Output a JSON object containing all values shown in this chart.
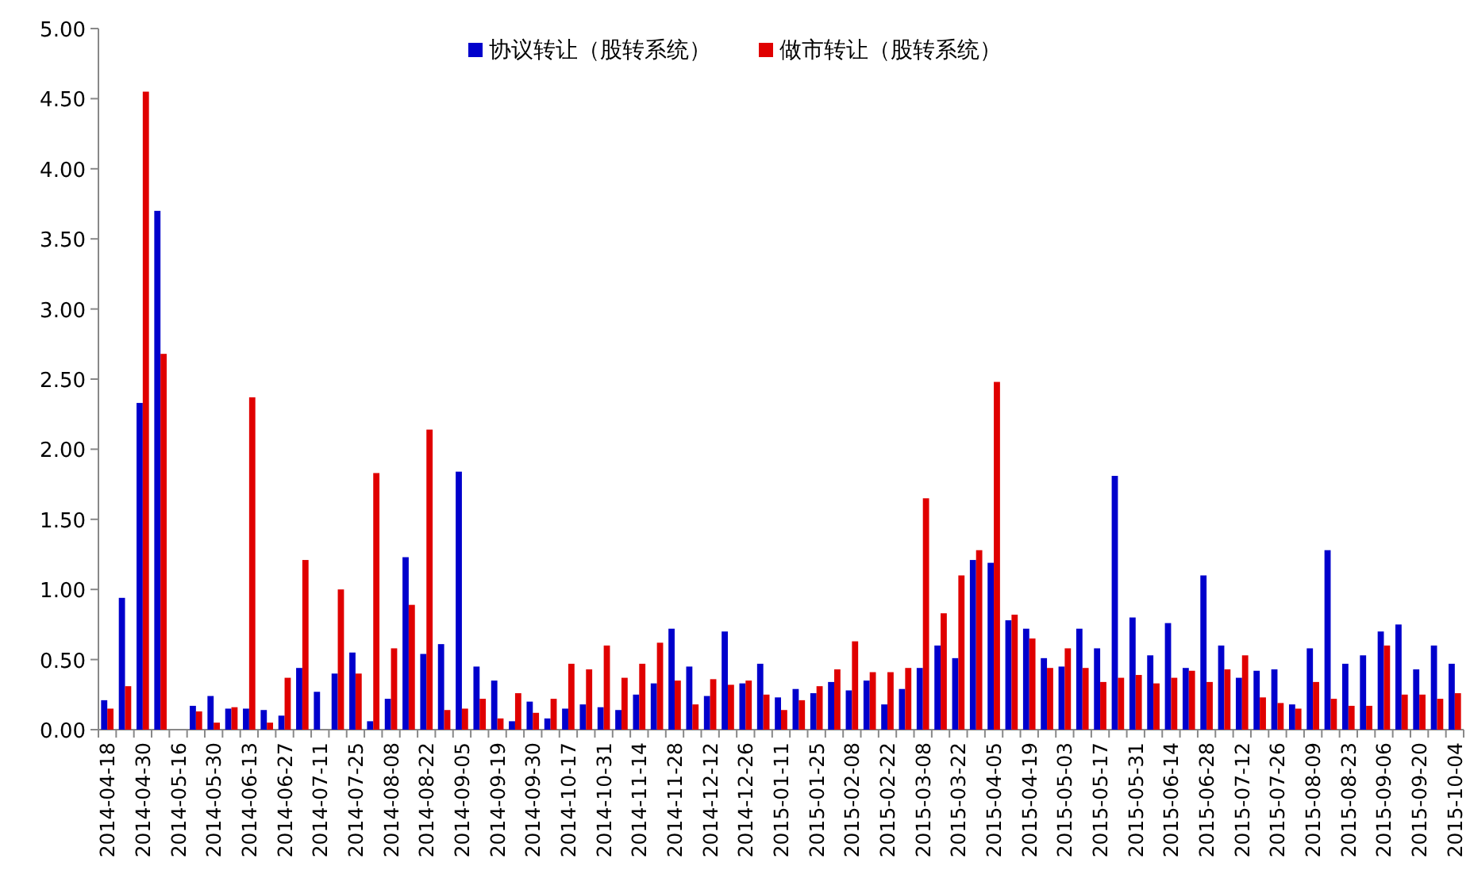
{
  "chart_data": {
    "type": "bar",
    "legend": "top",
    "categories": [
      "2014-04-18",
      null,
      "2014-04-30",
      null,
      "2014-05-16",
      null,
      "2014-05-30",
      null,
      "2014-06-13",
      null,
      "2014-06-27",
      null,
      "2014-07-11",
      null,
      "2014-07-25",
      null,
      "2014-08-08",
      null,
      "2014-08-22",
      null,
      "2014-09-05",
      null,
      "2014-09-19",
      null,
      "2014-09-30",
      null,
      "2014-10-17",
      null,
      "2014-10-31",
      null,
      "2014-11-14",
      null,
      "2014-11-28",
      null,
      "2014-12-12",
      null,
      "2014-12-26",
      null,
      "2015-01-11",
      null,
      "2015-01-25",
      null,
      "2015-02-08",
      null,
      "2015-02-22",
      null,
      "2015-03-08",
      null,
      "2015-03-22",
      null,
      "2015-04-05",
      null,
      "2015-04-19",
      null,
      "2015-05-03",
      null,
      "2015-05-17",
      null,
      "2015-05-31",
      null,
      "2015-06-14",
      null,
      "2015-06-28",
      null,
      "2015-07-12",
      null,
      "2015-07-26",
      null,
      "2015-08-09",
      null,
      "2015-08-23",
      null,
      "2015-09-06",
      null,
      "2015-09-20",
      null,
      "2015-10-04"
    ],
    "series": [
      {
        "name": "协议转让（股转系统）",
        "color": "#0000cc",
        "values": [
          0.21,
          0.94,
          2.33,
          3.7,
          0,
          0.17,
          0.24,
          0.15,
          0.15,
          0.14,
          0.1,
          0.44,
          0.27,
          0.4,
          0.55,
          0.06,
          0.22,
          1.23,
          0.54,
          0.61,
          1.84,
          0.45,
          0.35,
          0.06,
          0.2,
          0.08,
          0.15,
          0.18,
          0.16,
          0.14,
          0.25,
          0.33,
          0.72,
          0.45,
          0.24,
          0.7,
          0.33,
          0.47,
          0.23,
          0.29,
          0.26,
          0.34,
          0.28,
          0.35,
          0.18,
          0.29,
          0.44,
          0.6,
          0.51,
          1.21,
          1.19,
          0.78,
          0.72,
          0.51,
          0.45,
          0.72,
          0.58,
          1.81,
          0.8,
          0.53,
          0.76,
          0.44,
          1.1,
          0.6,
          0.37,
          0.42,
          0.43,
          0.18,
          0.58,
          1.28,
          0.47,
          0.53,
          0.7,
          0.75,
          0.43,
          0.6,
          0.47
        ]
      },
      {
        "name": "做市转让（股转系统）",
        "color": "#e00000",
        "values": [
          0.15,
          0.31,
          4.55,
          2.68,
          0,
          0.13,
          0.05,
          0.16,
          2.37,
          0.05,
          0.37,
          1.21,
          0,
          1.0,
          0.4,
          1.83,
          0.58,
          0.89,
          2.14,
          0.14,
          0.15,
          0.22,
          0.08,
          0.26,
          0.12,
          0.22,
          0.47,
          0.43,
          0.6,
          0.37,
          0.47,
          0.62,
          0.35,
          0.18,
          0.36,
          0.32,
          0.35,
          0.25,
          0.14,
          0.21,
          0.31,
          0.43,
          0.63,
          0.41,
          0.41,
          0.44,
          1.65,
          0.83,
          1.1,
          1.28,
          2.48,
          0.82,
          0.65,
          0.44,
          0.58,
          0.44,
          0.34,
          0.37,
          0.39,
          0.33,
          0.37,
          0.42,
          0.34,
          0.43,
          0.53,
          0.23,
          0.19,
          0.15,
          0.34,
          0.22,
          0.17,
          0.17,
          0.6,
          0.25,
          0.25,
          0.22,
          0.26
        ]
      }
    ],
    "ylim": [
      0,
      5
    ],
    "yticks": [
      {
        "value": 0,
        "label": "0.00"
      },
      {
        "value": 0.5,
        "label": "0.50"
      },
      {
        "value": 1,
        "label": "1.00"
      },
      {
        "value": 1.5,
        "label": "1.50"
      },
      {
        "value": 2,
        "label": "2.00"
      },
      {
        "value": 2.5,
        "label": "2.50"
      },
      {
        "value": 3,
        "label": "3.00"
      },
      {
        "value": 3.5,
        "label": "3.50"
      },
      {
        "value": 4,
        "label": "4.00"
      },
      {
        "value": 4.5,
        "label": "4.50"
      },
      {
        "value": 5,
        "label": "5.00"
      }
    ]
  }
}
